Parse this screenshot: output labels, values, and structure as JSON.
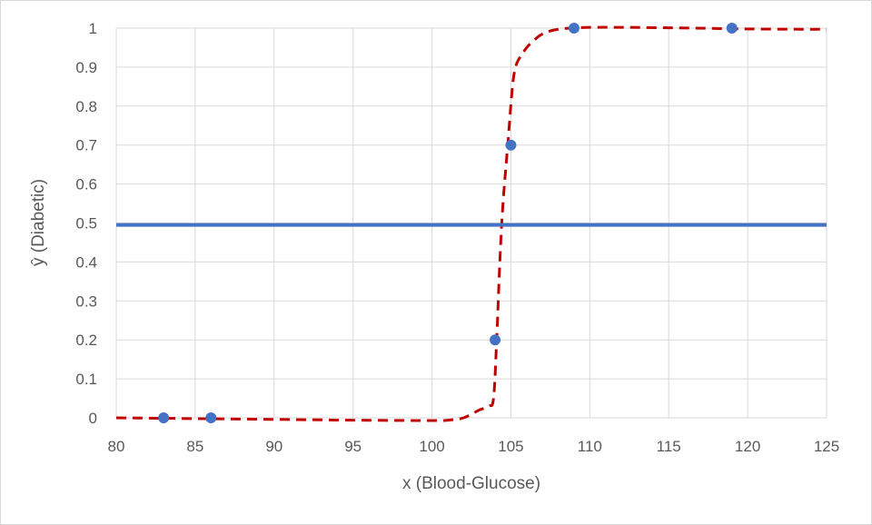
{
  "chart_data": {
    "type": "scatter",
    "xlabel": "x (Blood-Glucose)",
    "ylabel": "ŷ (Diabetic)",
    "xlim": [
      80,
      125
    ],
    "ylim": [
      0,
      1
    ],
    "x_ticks": [
      "80",
      "85",
      "90",
      "95",
      "100",
      "105",
      "110",
      "115",
      "120",
      "125"
    ],
    "y_ticks": [
      "0",
      "0.1",
      "0.2",
      "0.3",
      "0.4",
      "0.5",
      "0.6",
      "0.7",
      "0.8",
      "0.9",
      "1"
    ],
    "grid": true,
    "legend": "none",
    "series": [
      {
        "kind": "points",
        "color": "#4472C4",
        "x": [
          83,
          86,
          104,
          105,
          109,
          119
        ],
        "y": [
          0,
          0,
          0.2,
          0.7,
          1,
          1
        ]
      },
      {
        "kind": "dashed-curve",
        "color": "#C00000",
        "x": [
          80,
          85,
          90,
          95,
          100,
          101,
          102,
          103,
          103.6,
          103.9,
          104.1,
          104.3,
          104.5,
          104.8,
          105.1,
          105.3,
          105.5,
          106,
          106.5,
          107,
          108,
          110,
          115,
          120,
          125
        ],
        "y": [
          0,
          -0.002,
          -0.004,
          -0.006,
          -0.007,
          -0.006,
          0,
          0.02,
          0.03,
          0.05,
          0.2,
          0.4,
          0.55,
          0.7,
          0.85,
          0.9,
          0.92,
          0.95,
          0.97,
          0.985,
          0.997,
          1.002,
          1.001,
          0.998,
          0.997
        ]
      },
      {
        "kind": "horizontal-line",
        "color": "#4472C4",
        "y": 0.495
      }
    ]
  }
}
